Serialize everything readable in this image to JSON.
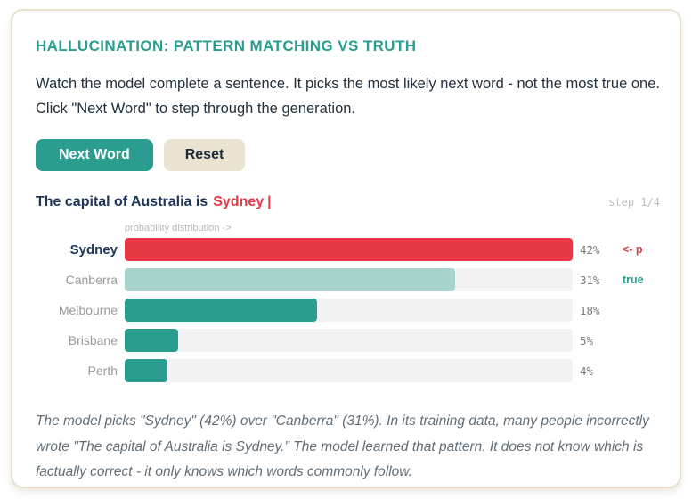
{
  "card": {
    "title": "HALLUCINATION: PATTERN MATCHING VS TRUTH",
    "description": "Watch the model complete a sentence. It picks the most likely next word - not the most true one. Click \"Next Word\" to step through the generation.",
    "buttons": {
      "next_word": "Next Word",
      "reset": "Reset"
    },
    "sentence": {
      "prefix": "The capital of Australia is",
      "generated": "Sydney",
      "cursor": "|",
      "step": "step 1/4"
    },
    "explanation": "The model picks \"Sydney\" (42%) over \"Canberra\" (31%). In its training data, many people incorrectly wrote \"The capital of Australia is Sydney.\" The model learned that pattern. It does not know which is factually correct - it only knows which words commonly follow."
  },
  "chart_data": {
    "type": "bar",
    "orientation": "horizontal",
    "title": "probability distribution ->",
    "categories": [
      "Sydney",
      "Canberra",
      "Melbourne",
      "Brisbane",
      "Perth"
    ],
    "values": [
      42,
      31,
      18,
      5,
      4
    ],
    "value_labels": [
      "42%",
      "31%",
      "18%",
      "5%",
      "4%"
    ],
    "annotations": [
      "<- p",
      "true",
      "",
      "",
      ""
    ],
    "bar_colors": [
      "#e63946",
      "#a8d3cd",
      "#2a9d8f",
      "#2a9d8f",
      "#2a9d8f"
    ],
    "max_value": 42,
    "track_color": "#f2f2f2",
    "picked_index": 0,
    "legend_position": "none",
    "grid": false
  },
  "colors": {
    "accent_teal": "#2a9d8f",
    "accent_red": "#e63946",
    "light_teal": "#a8d3cd",
    "card_border": "#e9e0cd",
    "dark_text": "#1d3557",
    "muted_text": "#9a9a9a"
  }
}
